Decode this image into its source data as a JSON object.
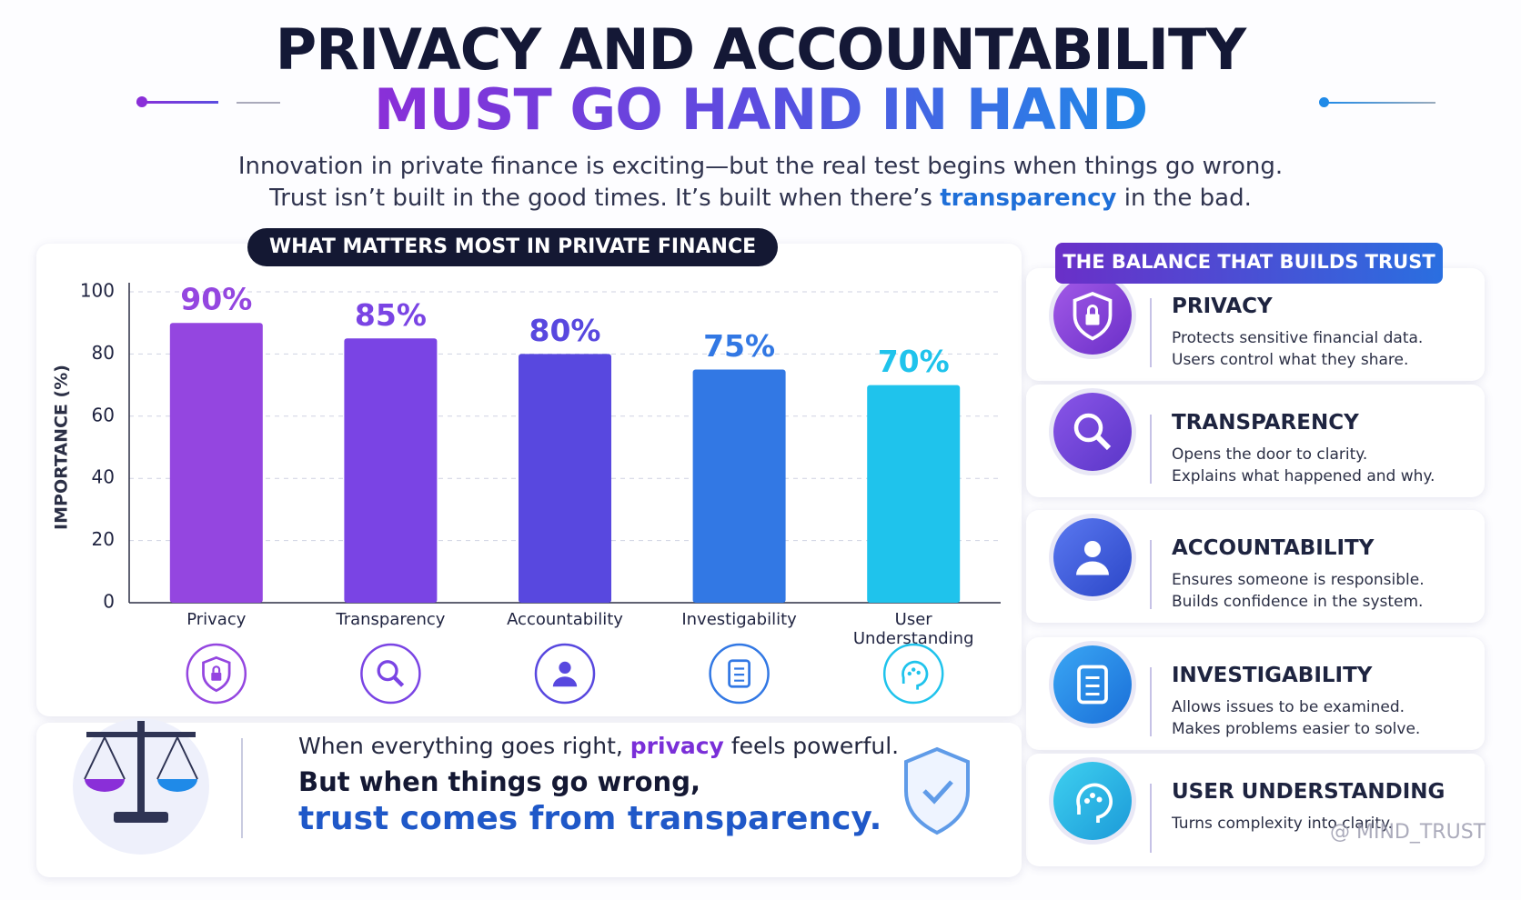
{
  "header": {
    "title_line1": "PRIVACY AND ACCOUNTABILITY",
    "title_line2": "MUST GO HAND IN HAND",
    "intro_line1": "Innovation in private finance is exciting—but the real test begins when things go wrong.",
    "intro_line2_start": "Trust isn’t built in the good times. It’s built when there’s",
    "intro_line2_highlight": "transparency",
    "intro_line2_end": "in the bad."
  },
  "chart_data": {
    "type": "bar",
    "title": "WHAT MATTERS MOST IN PRIVATE FINANCE",
    "y_label": "IMPORTANCE (%)",
    "categories": [
      "Privacy",
      "Transparency",
      "Accountability",
      "Investigability",
      "User Understanding"
    ],
    "values": [
      90,
      85,
      80,
      75,
      70
    ],
    "value_labels": [
      "90%",
      "85%",
      "80%",
      "75%",
      "70%"
    ],
    "colors": [
      "#9446e0",
      "#7a44e4",
      "#5848df",
      "#3278e4",
      "#1fc3ec"
    ],
    "ylim": [
      0,
      100
    ],
    "yticks": [
      0,
      20,
      40,
      60,
      80,
      100
    ],
    "grid": true
  },
  "panel": {
    "title": "THE BALANCE THAT BUILDS TRUST",
    "items": [
      {
        "title": "PRIVACY",
        "lines": [
          "Protects sensitive financial data.",
          "Users control what they share."
        ]
      },
      {
        "title": "TRANSPARENCY",
        "lines": [
          "Opens the door to clarity.",
          "Explains what happened and why."
        ]
      },
      {
        "title": "ACCOUNTABILITY",
        "lines": [
          "Ensures someone is responsible.",
          "Builds confidence in the system."
        ]
      },
      {
        "title": "INVESTIGABILITY",
        "lines": [
          "Allows issues to be examined.",
          "Makes problems easier to solve."
        ]
      },
      {
        "title": "USER UNDERSTANDING",
        "lines": [
          "Turns complexity into clarity."
        ]
      }
    ]
  },
  "footer": {
    "line1_start": "When everything goes right,",
    "line1_highlight": "privacy",
    "line1_end": "feels powerful.",
    "line2": "But when things go wrong,",
    "line3": "trust comes from transparency."
  },
  "watermark": "@ MIND_TRUST"
}
